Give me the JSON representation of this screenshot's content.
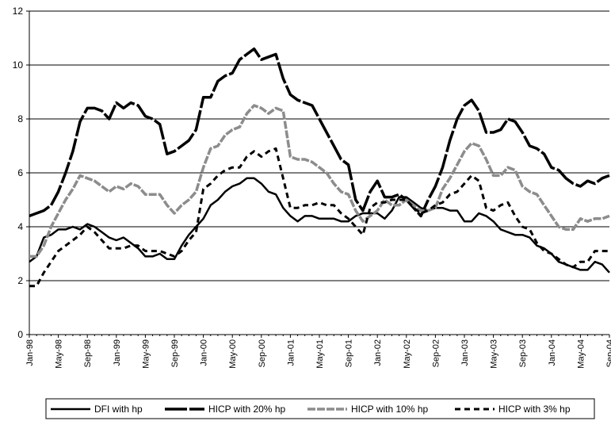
{
  "chart_data": {
    "type": "line",
    "categories": [
      "Jan-98",
      null,
      null,
      null,
      "May-98",
      null,
      null,
      null,
      "Sep-98",
      null,
      null,
      null,
      "Jan-99",
      null,
      null,
      null,
      "May-99",
      null,
      null,
      null,
      "Sep-99",
      null,
      null,
      null,
      "Jan-00",
      null,
      null,
      null,
      "May-00",
      null,
      null,
      null,
      "Sep-00",
      null,
      null,
      null,
      "Jan-01",
      null,
      null,
      null,
      "May-01",
      null,
      null,
      null,
      "Sep-01",
      null,
      null,
      null,
      "Jan-02",
      null,
      null,
      null,
      "May-02",
      null,
      null,
      null,
      "Sep-02",
      null,
      null,
      null,
      "Jan-03",
      null,
      null,
      null,
      "May-03",
      null,
      null,
      null,
      "Sep-03",
      null,
      null,
      null,
      "Jan-04",
      null,
      null,
      null,
      "May-04",
      null,
      null,
      null,
      "Sep-04"
    ],
    "series": [
      {
        "name": "DFI with hp",
        "color": "#000000",
        "values": [
          2.7,
          2.9,
          3.6,
          3.7,
          3.9,
          3.9,
          4.0,
          3.9,
          4.1,
          4.0,
          3.8,
          3.6,
          3.5,
          3.6,
          3.4,
          3.2,
          2.9,
          2.9,
          3.0,
          2.8,
          2.8,
          3.3,
          3.7,
          4.0,
          4.3,
          4.8,
          5.0,
          5.3,
          5.5,
          5.6,
          5.8,
          5.8,
          5.6,
          5.3,
          5.2,
          4.7,
          4.4,
          4.2,
          4.4,
          4.4,
          4.3,
          4.3,
          4.3,
          4.2,
          4.2,
          4.4,
          4.5,
          4.5,
          4.5,
          4.3,
          4.6,
          5.1,
          5.1,
          4.9,
          4.7,
          4.6,
          4.7,
          4.7,
          4.6,
          4.6,
          4.2,
          4.2,
          4.5,
          4.4,
          4.2,
          3.9,
          3.8,
          3.7,
          3.7,
          3.6,
          3.3,
          3.2,
          3.0,
          2.7,
          2.6,
          2.5,
          2.4,
          2.4,
          2.7,
          2.6,
          2.3
        ]
      },
      {
        "name": "HICP with 20% hp",
        "color": "#000000",
        "values": [
          4.4,
          4.5,
          4.6,
          4.8,
          5.3,
          6.0,
          6.8,
          7.9,
          8.4,
          8.4,
          8.3,
          8.0,
          8.6,
          8.4,
          8.6,
          8.5,
          8.1,
          8.0,
          7.8,
          6.7,
          6.8,
          7.0,
          7.2,
          7.6,
          8.8,
          8.8,
          9.4,
          9.6,
          9.7,
          10.2,
          10.4,
          10.6,
          10.2,
          10.3,
          10.4,
          9.5,
          8.9,
          8.7,
          8.6,
          8.5,
          8.0,
          7.5,
          7.0,
          6.5,
          6.3,
          5.0,
          4.6,
          5.3,
          5.7,
          5.1,
          5.1,
          5.2,
          5.0,
          4.7,
          4.4,
          5.0,
          5.5,
          6.2,
          7.2,
          8.0,
          8.5,
          8.7,
          8.3,
          7.5,
          7.5,
          7.6,
          8.0,
          7.9,
          7.5,
          7.0,
          6.9,
          6.7,
          6.2,
          6.1,
          5.8,
          5.6,
          5.5,
          5.7,
          5.6,
          5.8,
          5.9
        ]
      },
      {
        "name": "HICP with 10% hp",
        "color": "#8c8c8c",
        "values": [
          2.9,
          2.9,
          3.3,
          4.0,
          4.5,
          5.0,
          5.4,
          5.9,
          5.8,
          5.7,
          5.5,
          5.3,
          5.5,
          5.4,
          5.6,
          5.5,
          5.2,
          5.2,
          5.2,
          4.8,
          4.5,
          4.8,
          5.0,
          5.3,
          6.2,
          6.9,
          7.0,
          7.4,
          7.6,
          7.7,
          8.2,
          8.5,
          8.4,
          8.2,
          8.4,
          8.3,
          6.6,
          6.5,
          6.5,
          6.4,
          6.2,
          6.0,
          5.6,
          5.3,
          5.2,
          4.6,
          4.2,
          4.4,
          4.6,
          5.0,
          4.8,
          4.8,
          5.0,
          4.8,
          4.6,
          4.6,
          4.7,
          5.4,
          5.8,
          6.3,
          6.8,
          7.1,
          7.0,
          6.5,
          5.9,
          5.9,
          6.2,
          6.1,
          5.5,
          5.3,
          5.2,
          4.8,
          4.4,
          4.0,
          3.9,
          3.9,
          4.3,
          4.2,
          4.3,
          4.3,
          4.4
        ]
      },
      {
        "name": "HICP with 3% hp",
        "color": "#000000",
        "values": [
          1.8,
          1.8,
          2.3,
          2.7,
          3.1,
          3.3,
          3.5,
          3.7,
          4.0,
          3.8,
          3.5,
          3.2,
          3.2,
          3.2,
          3.3,
          3.3,
          3.1,
          3.1,
          3.1,
          3.0,
          2.9,
          3.1,
          3.5,
          3.8,
          5.4,
          5.6,
          5.9,
          6.1,
          6.2,
          6.2,
          6.6,
          6.8,
          6.6,
          6.8,
          6.9,
          5.8,
          4.7,
          4.7,
          4.8,
          4.8,
          4.9,
          4.8,
          4.8,
          4.5,
          4.3,
          4.0,
          3.7,
          4.7,
          4.9,
          4.9,
          5.0,
          5.0,
          5.0,
          4.7,
          4.5,
          4.6,
          4.8,
          4.9,
          5.2,
          5.3,
          5.6,
          5.9,
          5.7,
          4.7,
          4.6,
          4.8,
          4.9,
          4.4,
          4.0,
          3.9,
          3.4,
          3.1,
          3.0,
          2.8,
          2.6,
          2.5,
          2.7,
          2.7,
          3.1,
          3.1,
          3.1
        ]
      }
    ],
    "ylim": [
      0,
      12
    ],
    "yticks": [
      0,
      2,
      4,
      6,
      8,
      10,
      12
    ],
    "grid": true,
    "legend": "bottom"
  }
}
